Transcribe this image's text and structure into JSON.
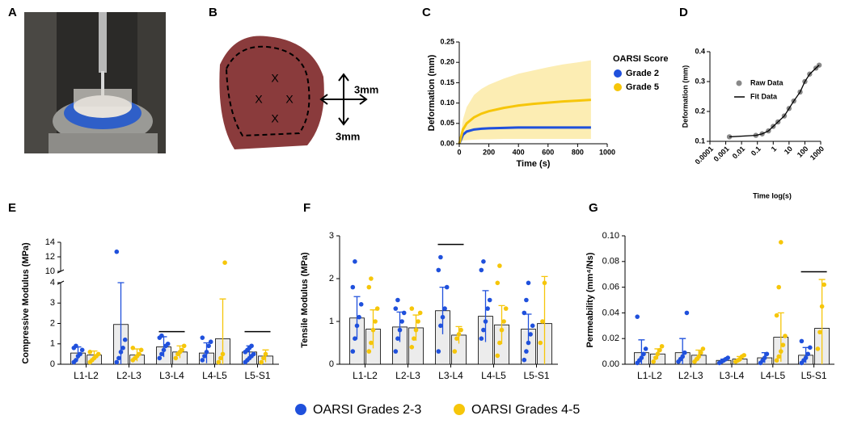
{
  "panel_labels": [
    "A",
    "B",
    "C",
    "D",
    "E",
    "F",
    "G"
  ],
  "photo_b": {
    "marks": [
      "X",
      "X",
      "X",
      "X"
    ],
    "scale_labels": [
      "3mm",
      "3mm"
    ]
  },
  "legend": {
    "series": [
      {
        "name": "OARSI Grades 2-3",
        "color": "#1f50dc"
      },
      {
        "name": "OARSI Grades 4-5",
        "color": "#f6c60a"
      }
    ]
  },
  "chart_data": [
    {
      "type": "line",
      "xlabel": "Time (s)",
      "ylabel": "Deformation (mm)",
      "legend_title": "OARSI Score",
      "xlim": [
        0,
        1000
      ],
      "xticks": [
        0,
        200,
        400,
        600,
        800,
        1000
      ],
      "ylim": [
        0,
        0.25
      ],
      "yticks": [
        {
          "value": 0,
          "label": "0.00"
        },
        {
          "value": 0.05,
          "label": "0.05"
        },
        {
          "value": 0.1,
          "label": "0.10"
        },
        {
          "value": 0.15,
          "label": "0.15"
        },
        {
          "value": 0.2,
          "label": "0.20"
        },
        {
          "value": 0.25,
          "label": "0.25"
        }
      ],
      "x": [
        0,
        25,
        50,
        100,
        150,
        200,
        300,
        400,
        500,
        600,
        700,
        800,
        890
      ],
      "series": [
        {
          "name": "Grade 2",
          "color": "#1f50dc",
          "band_color": "#9fb4ee",
          "values": [
            0,
            0.022,
            0.03,
            0.035,
            0.037,
            0.038,
            0.039,
            0.04,
            0.04,
            0.04,
            0.04,
            0.04,
            0.04
          ],
          "lower": [
            0,
            0.019,
            0.027,
            0.032,
            0.034,
            0.035,
            0.036,
            0.037,
            0.037,
            0.037,
            0.037,
            0.037,
            0.037
          ],
          "upper": [
            0,
            0.025,
            0.033,
            0.038,
            0.04,
            0.041,
            0.042,
            0.043,
            0.043,
            0.043,
            0.043,
            0.043,
            0.043
          ]
        },
        {
          "name": "Grade 5",
          "color": "#f6c60a",
          "band_color": "#fbe79a",
          "values": [
            0,
            0.035,
            0.05,
            0.065,
            0.074,
            0.08,
            0.088,
            0.094,
            0.098,
            0.101,
            0.104,
            0.106,
            0.108
          ],
          "lower": [
            0,
            0.008,
            0.009,
            0.01,
            0.011,
            0.011,
            0.012,
            0.012,
            0.012,
            0.012,
            0.012,
            0.012,
            0.012
          ],
          "upper": [
            0,
            0.06,
            0.09,
            0.12,
            0.135,
            0.145,
            0.16,
            0.172,
            0.18,
            0.188,
            0.195,
            0.2,
            0.205
          ]
        }
      ]
    },
    {
      "type": "scatter_fit",
      "xlabel": "Time log(s)",
      "ylabel": "Deformation (mm)",
      "log_x": true,
      "xlim": [
        0.0001,
        1000
      ],
      "xticks": [
        0.0001,
        0.001,
        0.01,
        0.1,
        1,
        10,
        100,
        1000
      ],
      "ylim": [
        0.1,
        0.4
      ],
      "yticks": [
        0.1,
        0.2,
        0.3,
        0.4
      ],
      "x": [
        0.0017,
        0.08,
        0.2,
        0.5,
        1,
        2,
        5,
        10,
        20,
        50,
        100,
        200,
        500,
        800
      ],
      "series": [
        {
          "name": "Raw Data",
          "color": "#888888",
          "values": [
            0.115,
            0.12,
            0.125,
            0.135,
            0.15,
            0.165,
            0.185,
            0.21,
            0.235,
            0.265,
            0.3,
            0.325,
            0.345,
            0.355
          ]
        },
        {
          "name": "Fit Data",
          "color": "#000000",
          "values": [
            0.115,
            0.12,
            0.125,
            0.135,
            0.15,
            0.165,
            0.185,
            0.21,
            0.235,
            0.265,
            0.3,
            0.325,
            0.345,
            0.355
          ]
        }
      ]
    },
    {
      "type": "bar",
      "ylabel": "Compressive Modulus (MPa)",
      "categories": [
        "L1-L2",
        "L2-L3",
        "L3-L4",
        "L4-L5",
        "L5-S1"
      ],
      "ylim": [
        0,
        4
      ],
      "yticks": [
        0,
        1,
        2,
        3,
        4
      ],
      "ylim_upper": [
        10,
        14
      ],
      "yticks_upper": [
        10,
        12,
        14
      ],
      "significance": [
        {
          "category": 2,
          "y": 1.6
        },
        {
          "category": 4,
          "y": 1.6
        }
      ],
      "series": [
        {
          "values": [
            0.55,
            1.95,
            0.85,
            0.55,
            0.6
          ],
          "errors": [
            0.3,
            2.05,
            0.5,
            0.5,
            0.3
          ],
          "points": [
            [
              0.1,
              0.2,
              0.4,
              0.5,
              0.7,
              0.8,
              0.9
            ],
            [
              0.1,
              0.3,
              0.6,
              0.8,
              1.2,
              12.7
            ],
            [
              0.3,
              0.5,
              0.7,
              0.9,
              1.0,
              1.3,
              1.4
            ],
            [
              0.2,
              0.4,
              0.6,
              0.9,
              1.1,
              1.3
            ],
            [
              0.1,
              0.2,
              0.3,
              0.4,
              0.5,
              0.6,
              0.7,
              0.8,
              0.9
            ]
          ]
        },
        {
          "values": [
            0.45,
            0.45,
            0.6,
            1.25,
            0.4
          ],
          "errors": [
            0.2,
            0.3,
            0.3,
            1.95,
            0.3
          ],
          "points": [
            [
              0.1,
              0.2,
              0.3,
              0.4,
              0.5,
              0.6
            ],
            [
              0.2,
              0.3,
              0.4,
              0.5,
              0.7,
              0.8
            ],
            [
              0.3,
              0.5,
              0.6,
              0.7,
              0.9
            ],
            [
              0.1,
              0.3,
              0.5,
              11.2
            ],
            [
              0.1,
              0.3,
              0.5
            ]
          ]
        }
      ]
    },
    {
      "type": "bar",
      "ylabel": "Tensile Modulus (MPa)",
      "categories": [
        "L1-L2",
        "L2-L3",
        "L3-L4",
        "L4-L5",
        "L5-S1"
      ],
      "ylim": [
        0,
        3
      ],
      "yticks": [
        0,
        1,
        2,
        3
      ],
      "significance": [
        {
          "category": 2,
          "y": 2.8
        }
      ],
      "series": [
        {
          "values": [
            1.08,
            0.87,
            1.25,
            1.12,
            0.82
          ],
          "errors": [
            0.5,
            0.35,
            0.55,
            0.6,
            0.35
          ],
          "points": [
            [
              0.3,
              0.6,
              0.9,
              1.1,
              1.4,
              1.8,
              2.4
            ],
            [
              0.3,
              0.6,
              0.8,
              1.0,
              1.2,
              1.3,
              1.5
            ],
            [
              0.3,
              0.9,
              1.1,
              1.3,
              1.8,
              2.2,
              2.5
            ],
            [
              0.6,
              0.8,
              1.0,
              1.3,
              1.5,
              2.2,
              2.4
            ],
            [
              0.1,
              0.3,
              0.5,
              0.7,
              0.9,
              1.2,
              1.5,
              1.9
            ]
          ]
        },
        {
          "values": [
            0.82,
            0.85,
            0.68,
            0.92,
            0.95
          ],
          "errors": [
            0.45,
            0.3,
            0.2,
            0.45,
            1.1
          ],
          "points": [
            [
              0.3,
              0.5,
              0.8,
              1.0,
              1.3,
              1.8,
              2.0
            ],
            [
              0.4,
              0.6,
              0.8,
              1.0,
              1.2,
              1.3
            ],
            [
              0.3,
              0.6,
              0.7,
              0.8
            ],
            [
              0.2,
              0.5,
              0.8,
              1.0,
              1.3,
              1.9,
              2.3
            ],
            [
              0.5,
              1.0,
              1.9
            ]
          ]
        }
      ]
    },
    {
      "type": "bar",
      "ylabel": "Permeability (mm⁴/Ns)",
      "categories": [
        "L1-L2",
        "L2-L3",
        "L3-L4",
        "L4-L5",
        "L5-S1"
      ],
      "ylim": [
        0,
        0.1
      ],
      "yticks": [
        {
          "value": 0,
          "label": "0.00"
        },
        {
          "value": 0.02,
          "label": "0.02"
        },
        {
          "value": 0.04,
          "label": "0.04"
        },
        {
          "value": 0.06,
          "label": "0.06"
        },
        {
          "value": 0.08,
          "label": "0.08"
        },
        {
          "value": 0.1,
          "label": "0.10"
        }
      ],
      "significance": [
        {
          "category": 4,
          "y": 0.072
        }
      ],
      "series": [
        {
          "values": [
            0.009,
            0.009,
            0.003,
            0.005,
            0.007
          ],
          "errors": [
            0.01,
            0.011,
            0.001,
            0.004,
            0.006
          ],
          "points": [
            [
              0.001,
              0.003,
              0.005,
              0.008,
              0.012,
              0.037
            ],
            [
              0.002,
              0.004,
              0.006,
              0.009,
              0.04
            ],
            [
              0.001,
              0.002,
              0.003,
              0.004,
              0.005
            ],
            [
              0.001,
              0.003,
              0.005,
              0.008
            ],
            [
              0.001,
              0.003,
              0.005,
              0.008,
              0.013,
              0.018
            ]
          ]
        },
        {
          "values": [
            0.008,
            0.007,
            0.004,
            0.021,
            0.028
          ],
          "errors": [
            0.004,
            0.004,
            0.002,
            0.019,
            0.038
          ],
          "points": [
            [
              0.002,
              0.005,
              0.008,
              0.011,
              0.014
            ],
            [
              0.002,
              0.004,
              0.006,
              0.009,
              0.012
            ],
            [
              0.002,
              0.003,
              0.004,
              0.006,
              0.007
            ],
            [
              0.003,
              0.006,
              0.01,
              0.015,
              0.022,
              0.038,
              0.06,
              0.095
            ],
            [
              0.012,
              0.025,
              0.045,
              0.062
            ]
          ]
        }
      ]
    }
  ]
}
